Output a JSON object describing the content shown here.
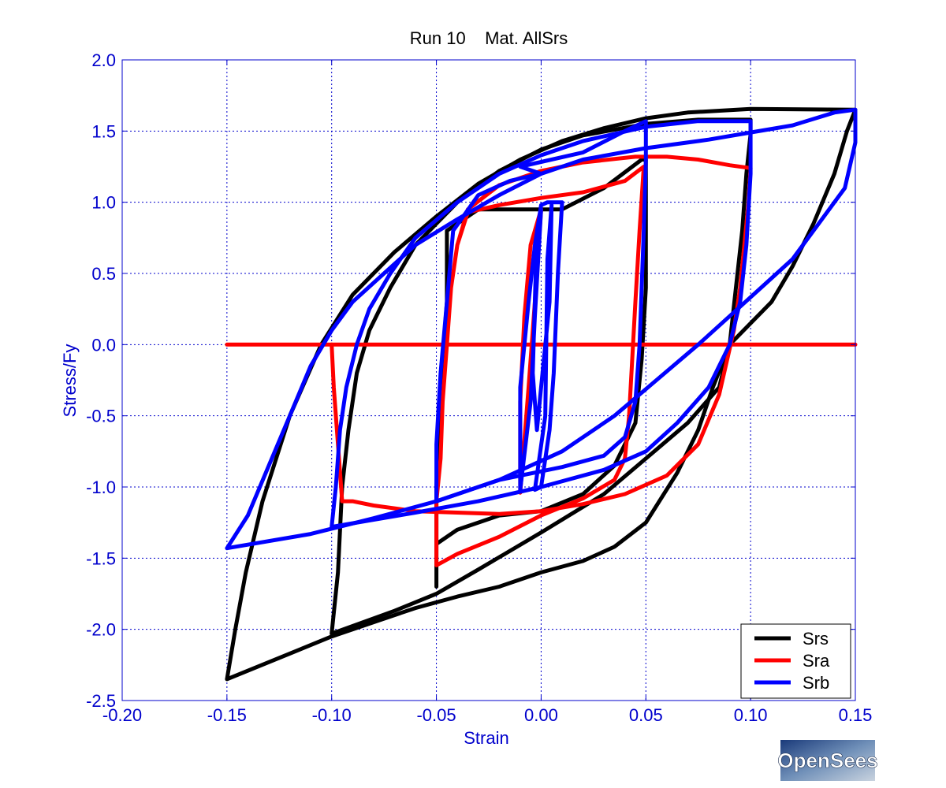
{
  "chart_data": {
    "type": "line",
    "title": "Run 10    Mat. AllSrs",
    "xlabel": "Strain",
    "ylabel": "Stress/Fy",
    "xlim": [
      -0.2,
      0.15
    ],
    "ylim": [
      -2.5,
      2.0
    ],
    "x_ticks": [
      -0.2,
      -0.15,
      -0.1,
      -0.05,
      0.0,
      0.05,
      0.1,
      0.15
    ],
    "x_tick_labels": [
      "-0.20",
      "-0.15",
      "-0.10",
      "-0.05",
      "0.00",
      "0.05",
      "0.10",
      "0.15"
    ],
    "y_ticks": [
      -2.5,
      -2.0,
      -1.5,
      -1.0,
      -0.5,
      0.0,
      0.5,
      1.0,
      1.5,
      2.0
    ],
    "y_tick_labels": [
      "-2.5",
      "-2.0",
      "-1.5",
      "-1.0",
      "-0.5",
      "0.0",
      "0.5",
      "1.0",
      "1.5",
      "2.0"
    ],
    "grid": true,
    "legend_position": "bottom-right",
    "colors": {
      "axis": "#0000cc",
      "grid": "#0000cc",
      "title": "#000000"
    },
    "series": [
      {
        "name": "Srs",
        "color": "#000000",
        "segments": [
          [
            [
              -0.15,
              -2.35
            ],
            [
              -0.146,
              -2.0
            ],
            [
              -0.141,
              -1.6
            ],
            [
              -0.133,
              -1.1
            ],
            [
              -0.12,
              -0.5
            ],
            [
              -0.105,
              0.0
            ],
            [
              -0.09,
              0.35
            ],
            [
              -0.07,
              0.65
            ],
            [
              -0.05,
              0.9
            ],
            [
              -0.03,
              1.13
            ],
            [
              -0.01,
              1.3
            ],
            [
              0.01,
              1.43
            ],
            [
              0.03,
              1.52
            ],
            [
              0.05,
              1.59
            ],
            [
              0.07,
              1.63
            ],
            [
              0.1,
              1.655
            ],
            [
              0.15,
              1.65
            ],
            [
              0.146,
              1.5
            ],
            [
              0.14,
              1.2
            ],
            [
              0.13,
              0.85
            ],
            [
              0.12,
              0.55
            ],
            [
              0.11,
              0.3
            ],
            [
              0.1,
              0.15
            ],
            [
              0.09,
              0.0
            ],
            [
              0.082,
              -0.3
            ],
            [
              0.075,
              -0.6
            ],
            [
              0.065,
              -0.9
            ],
            [
              0.05,
              -1.25
            ],
            [
              0.035,
              -1.42
            ],
            [
              0.02,
              -1.52
            ],
            [
              0.0,
              -1.6
            ],
            [
              -0.02,
              -1.7
            ],
            [
              -0.04,
              -1.77
            ],
            [
              -0.06,
              -1.85
            ],
            [
              -0.08,
              -1.95
            ],
            [
              -0.1,
              -2.05
            ],
            [
              -0.12,
              -2.17
            ],
            [
              -0.15,
              -2.35
            ]
          ],
          [
            [
              -0.1,
              -2.03
            ],
            [
              -0.097,
              -1.6
            ],
            [
              -0.095,
              -1.0
            ],
            [
              -0.092,
              -0.6
            ],
            [
              -0.088,
              -0.2
            ],
            [
              -0.082,
              0.1
            ],
            [
              -0.072,
              0.4
            ],
            [
              -0.06,
              0.7
            ],
            [
              -0.04,
              1.0
            ],
            [
              -0.02,
              1.22
            ],
            [
              0.0,
              1.37
            ],
            [
              0.02,
              1.47
            ],
            [
              0.05,
              1.55
            ],
            [
              0.075,
              1.58
            ],
            [
              0.1,
              1.58
            ],
            [
              0.1,
              1.48
            ],
            [
              0.098,
              1.2
            ],
            [
              0.096,
              0.8
            ],
            [
              0.093,
              0.4
            ],
            [
              0.09,
              0.0
            ],
            [
              0.085,
              -0.3
            ],
            [
              0.07,
              -0.55
            ],
            [
              0.05,
              -0.8
            ],
            [
              0.03,
              -1.05
            ],
            [
              0.0,
              -1.32
            ],
            [
              -0.03,
              -1.58
            ],
            [
              -0.05,
              -1.75
            ],
            [
              -0.07,
              -1.87
            ],
            [
              -0.1,
              -2.03
            ]
          ],
          [
            [
              -0.05,
              -1.7
            ],
            [
              -0.05,
              -1.55
            ],
            [
              -0.05,
              -1.4
            ],
            [
              -0.04,
              -1.3
            ],
            [
              -0.02,
              -1.2
            ],
            [
              0.0,
              -1.17
            ],
            [
              0.02,
              -1.05
            ],
            [
              0.035,
              -0.85
            ],
            [
              0.045,
              -0.55
            ],
            [
              0.048,
              -0.1
            ],
            [
              0.05,
              0.4
            ],
            [
              0.05,
              1.0
            ],
            [
              0.05,
              1.3
            ],
            [
              0.048,
              1.3
            ],
            [
              0.03,
              1.1
            ],
            [
              0.01,
              0.95
            ],
            [
              -0.01,
              0.95
            ],
            [
              -0.03,
              0.95
            ],
            [
              -0.045,
              0.8
            ],
            [
              -0.045,
              0.3
            ],
            [
              -0.048,
              -0.3
            ],
            [
              -0.05,
              -1.0
            ],
            [
              -0.05,
              -1.7
            ]
          ]
        ]
      },
      {
        "name": "Sra",
        "color": "#ff0000",
        "segments": [
          [
            [
              -0.15,
              0.0
            ],
            [
              0.15,
              0.0
            ]
          ],
          [
            [
              -0.1,
              0.0
            ],
            [
              -0.099,
              -0.3
            ],
            [
              -0.097,
              -0.7
            ],
            [
              -0.095,
              -1.1
            ],
            [
              -0.09,
              -1.1
            ],
            [
              -0.08,
              -1.13
            ],
            [
              -0.06,
              -1.17
            ],
            [
              -0.04,
              -1.18
            ],
            [
              -0.02,
              -1.19
            ],
            [
              0.0,
              -1.17
            ],
            [
              0.02,
              -1.12
            ],
            [
              0.04,
              -1.05
            ],
            [
              0.06,
              -0.92
            ],
            [
              0.075,
              -0.7
            ],
            [
              0.085,
              -0.35
            ],
            [
              0.092,
              0.1
            ],
            [
              0.095,
              0.4
            ],
            [
              0.097,
              0.7
            ],
            [
              0.099,
              1.0
            ],
            [
              0.1,
              1.24
            ],
            [
              0.09,
              1.26
            ],
            [
              0.075,
              1.3
            ],
            [
              0.06,
              1.32
            ],
            [
              0.045,
              1.32
            ],
            [
              0.02,
              1.28
            ],
            [
              0.0,
              1.22
            ],
            [
              -0.02,
              1.12
            ],
            [
              -0.035,
              0.95
            ],
            [
              -0.04,
              0.7
            ],
            [
              -0.043,
              0.4
            ],
            [
              -0.045,
              0.0
            ],
            [
              -0.047,
              -0.4
            ],
            [
              -0.048,
              -0.8
            ],
            [
              -0.05,
              -1.1
            ],
            [
              -0.05,
              -1.35
            ],
            [
              -0.05,
              -1.55
            ],
            [
              -0.04,
              -1.47
            ],
            [
              -0.02,
              -1.35
            ],
            [
              0.0,
              -1.2
            ],
            [
              0.02,
              -1.08
            ],
            [
              0.035,
              -0.95
            ],
            [
              0.04,
              -0.8
            ],
            [
              0.042,
              -0.5
            ],
            [
              0.045,
              0.3
            ],
            [
              0.047,
              0.8
            ],
            [
              0.049,
              1.25
            ],
            [
              0.04,
              1.15
            ],
            [
              0.02,
              1.07
            ],
            [
              0.0,
              1.03
            ],
            [
              -0.02,
              0.98
            ],
            [
              -0.035,
              0.93
            ],
            [
              -0.04,
              0.7
            ],
            [
              -0.045,
              0.2
            ]
          ],
          [
            [
              -0.01,
              -1.04
            ],
            [
              -0.01,
              -0.4
            ],
            [
              -0.008,
              0.2
            ],
            [
              -0.005,
              0.7
            ],
            [
              0.0,
              0.95
            ],
            [
              -0.003,
              0.3
            ],
            [
              -0.006,
              -0.3
            ],
            [
              -0.01,
              -1.04
            ]
          ]
        ]
      },
      {
        "name": "Srb",
        "color": "#0000ff",
        "segments": [
          [
            [
              -0.15,
              -1.43
            ],
            [
              -0.14,
              -1.2
            ],
            [
              -0.13,
              -0.85
            ],
            [
              -0.12,
              -0.5
            ],
            [
              -0.11,
              -0.15
            ],
            [
              -0.1,
              0.1
            ],
            [
              -0.09,
              0.3
            ],
            [
              -0.075,
              0.5
            ],
            [
              -0.06,
              0.7
            ],
            [
              -0.04,
              0.88
            ],
            [
              -0.02,
              1.05
            ],
            [
              0.0,
              1.2
            ],
            [
              0.02,
              1.3
            ],
            [
              0.05,
              1.38
            ],
            [
              0.08,
              1.44
            ],
            [
              0.1,
              1.49
            ],
            [
              0.12,
              1.54
            ],
            [
              0.14,
              1.63
            ],
            [
              0.15,
              1.65
            ],
            [
              0.15,
              1.42
            ],
            [
              0.145,
              1.1
            ],
            [
              0.13,
              0.8
            ],
            [
              0.12,
              0.6
            ],
            [
              0.105,
              0.4
            ],
            [
              0.09,
              0.2
            ],
            [
              0.075,
              0.0
            ],
            [
              0.055,
              -0.25
            ],
            [
              0.035,
              -0.5
            ],
            [
              0.01,
              -0.75
            ],
            [
              -0.02,
              -0.95
            ],
            [
              -0.05,
              -1.1
            ],
            [
              -0.08,
              -1.22
            ],
            [
              -0.11,
              -1.33
            ],
            [
              -0.15,
              -1.43
            ]
          ],
          [
            [
              -0.1,
              -1.28
            ],
            [
              -0.098,
              -1.0
            ],
            [
              -0.096,
              -0.6
            ],
            [
              -0.093,
              -0.3
            ],
            [
              -0.088,
              0.0
            ],
            [
              -0.082,
              0.25
            ],
            [
              -0.072,
              0.5
            ],
            [
              -0.06,
              0.75
            ],
            [
              -0.04,
              1.0
            ],
            [
              -0.02,
              1.2
            ],
            [
              0.0,
              1.33
            ],
            [
              0.02,
              1.43
            ],
            [
              0.05,
              1.53
            ],
            [
              0.075,
              1.57
            ],
            [
              0.1,
              1.57
            ],
            [
              0.1,
              1.2
            ],
            [
              0.098,
              0.7
            ],
            [
              0.095,
              0.3
            ],
            [
              0.09,
              0.0
            ],
            [
              0.08,
              -0.3
            ],
            [
              0.065,
              -0.55
            ],
            [
              0.05,
              -0.75
            ],
            [
              0.03,
              -0.88
            ],
            [
              0.0,
              -1.0
            ],
            [
              -0.03,
              -1.1
            ],
            [
              -0.06,
              -1.18
            ],
            [
              -0.1,
              -1.28
            ]
          ],
          [
            [
              -0.05,
              -1.1
            ],
            [
              -0.05,
              -0.7
            ],
            [
              -0.048,
              -0.2
            ],
            [
              -0.045,
              0.3
            ],
            [
              -0.042,
              0.8
            ],
            [
              -0.03,
              1.05
            ],
            [
              -0.015,
              1.15
            ],
            [
              0.0,
              1.2
            ],
            [
              -0.01,
              1.25
            ],
            [
              0.02,
              1.35
            ],
            [
              0.04,
              1.5
            ],
            [
              0.05,
              1.57
            ],
            [
              0.05,
              1.3
            ],
            [
              0.049,
              0.8
            ],
            [
              0.047,
              0.0
            ],
            [
              0.045,
              -0.4
            ],
            [
              0.04,
              -0.65
            ],
            [
              0.03,
              -0.78
            ],
            [
              0.01,
              -0.86
            ],
            [
              -0.02,
              -0.95
            ],
            [
              -0.05,
              -1.1
            ]
          ],
          [
            [
              -0.01,
              -1.02
            ],
            [
              -0.01,
              -0.3
            ],
            [
              -0.006,
              0.3
            ],
            [
              -0.003,
              0.7
            ],
            [
              0.0,
              0.98
            ],
            [
              0.003,
              1.0
            ],
            [
              0.01,
              1.0
            ],
            [
              0.008,
              0.5
            ],
            [
              0.006,
              -0.2
            ],
            [
              0.004,
              -0.6
            ],
            [
              0.0,
              -1.0
            ],
            [
              -0.003,
              -1.02
            ],
            [
              0.002,
              -0.5
            ],
            [
              0.003,
              0.6
            ],
            [
              0.005,
              0.98
            ],
            [
              0.004,
              0.3
            ],
            [
              0.0,
              -0.3
            ],
            [
              -0.002,
              -0.6
            ],
            [
              -0.004,
              -0.2
            ],
            [
              -0.002,
              0.8
            ],
            [
              0.0,
              0.95
            ],
            [
              -0.003,
              0.2
            ],
            [
              -0.005,
              -0.4
            ],
            [
              -0.01,
              -1.02
            ]
          ]
        ]
      }
    ],
    "logo": "OpenSees"
  }
}
